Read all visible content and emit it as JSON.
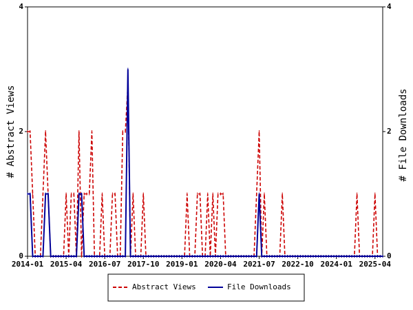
{
  "chart_data": {
    "type": "line",
    "y_label": "# Abstract Views",
    "y2_label": "# File Downloads",
    "categories": [
      "2014-01",
      null,
      null,
      null,
      null,
      null,
      null,
      null,
      null,
      null,
      null,
      null,
      null,
      null,
      null,
      "2015-04",
      null,
      null,
      null,
      null,
      null,
      null,
      null,
      null,
      null,
      null,
      null,
      null,
      null,
      null,
      "2016-07",
      null,
      null,
      null,
      null,
      null,
      null,
      null,
      null,
      null,
      null,
      null,
      null,
      null,
      null,
      "2017-10",
      null,
      null,
      null,
      null,
      null,
      null,
      null,
      null,
      null,
      null,
      null,
      null,
      null,
      null,
      "2019-01",
      null,
      null,
      null,
      null,
      null,
      null,
      null,
      null,
      null,
      null,
      null,
      null,
      null,
      null,
      "2020-04",
      null,
      null,
      null,
      null,
      null,
      null,
      null,
      null,
      null,
      null,
      null,
      null,
      null,
      null,
      "2021-07",
      null,
      null,
      null,
      null,
      null,
      null,
      null,
      null,
      null,
      null,
      null,
      null,
      null,
      null,
      "2022-10",
      null,
      null,
      null,
      null,
      null,
      null,
      null,
      null,
      null,
      null,
      null,
      null,
      null,
      null,
      "2024-01",
      null,
      null,
      null,
      null,
      null,
      null,
      null,
      null,
      null,
      null,
      null,
      null,
      null,
      null,
      "2025-04",
      null,
      null,
      null
    ],
    "series": [
      {
        "name": "Abstract Views",
        "color": "#cc0000",
        "dashed": true,
        "axis": "y",
        "values": [
          2,
          2,
          1,
          0,
          0,
          0,
          1,
          2,
          1,
          0,
          0,
          0,
          0,
          0,
          0,
          1,
          0,
          1,
          1,
          0,
          2,
          0,
          1,
          1,
          1,
          2,
          0,
          0,
          0,
          1,
          0,
          0,
          0,
          1,
          1,
          0,
          0,
          2,
          2,
          2.75,
          0,
          1,
          0,
          0,
          0,
          1,
          0,
          0,
          0,
          0,
          0,
          0,
          0,
          0,
          0,
          0,
          0,
          0,
          0,
          0,
          0,
          0,
          1,
          0,
          0,
          0,
          1,
          1,
          0,
          0,
          1,
          0,
          1,
          0,
          1,
          1,
          1,
          0,
          0,
          0,
          0,
          0,
          0,
          0,
          0,
          0,
          0,
          0,
          0,
          1,
          2,
          0,
          1,
          0,
          0,
          0,
          0,
          0,
          0,
          1,
          0,
          0,
          0,
          0,
          0,
          0,
          0,
          0,
          0,
          0,
          0,
          0,
          0,
          0,
          0,
          0,
          0,
          0,
          0,
          0,
          0,
          0,
          0,
          0,
          0,
          0,
          0,
          0,
          1,
          0,
          0,
          0,
          0,
          0,
          0,
          1,
          0,
          0,
          0
        ]
      },
      {
        "name": "File Downloads",
        "color": "#000099",
        "dashed": false,
        "axis": "y2",
        "values": [
          1,
          1,
          0,
          0,
          0,
          0,
          0,
          1,
          1,
          0,
          0,
          0,
          0,
          0,
          0,
          0,
          0,
          0,
          0,
          0,
          1,
          1,
          0,
          0,
          0,
          0,
          0,
          0,
          0,
          0,
          0,
          0,
          0,
          0,
          0,
          0,
          0,
          0,
          0,
          3,
          0,
          0,
          0,
          0,
          0,
          0,
          0,
          0,
          0,
          0,
          0,
          0,
          0,
          0,
          0,
          0,
          0,
          0,
          0,
          0,
          0,
          0,
          0,
          0,
          0,
          0,
          0,
          0,
          0,
          0,
          0,
          0,
          0,
          0,
          0,
          0,
          0,
          0,
          0,
          0,
          0,
          0,
          0,
          0,
          0,
          0,
          0,
          0,
          0,
          0,
          1,
          0,
          0,
          0,
          0,
          0,
          0,
          0,
          0,
          0,
          0,
          0,
          0,
          0,
          0,
          0,
          0,
          0,
          0,
          0,
          0,
          0,
          0,
          0,
          0,
          0,
          0,
          0,
          0,
          0,
          0,
          0,
          0,
          0,
          0,
          0,
          0,
          0,
          0,
          0,
          0,
          0,
          0,
          0,
          0,
          0,
          0,
          0,
          0
        ]
      }
    ],
    "ylim": [
      0,
      4
    ],
    "yticks": [
      0,
      2,
      4
    ],
    "y2lim": [
      0,
      4
    ],
    "y2ticks": [
      0,
      2,
      4
    ],
    "legend": "bottom"
  }
}
